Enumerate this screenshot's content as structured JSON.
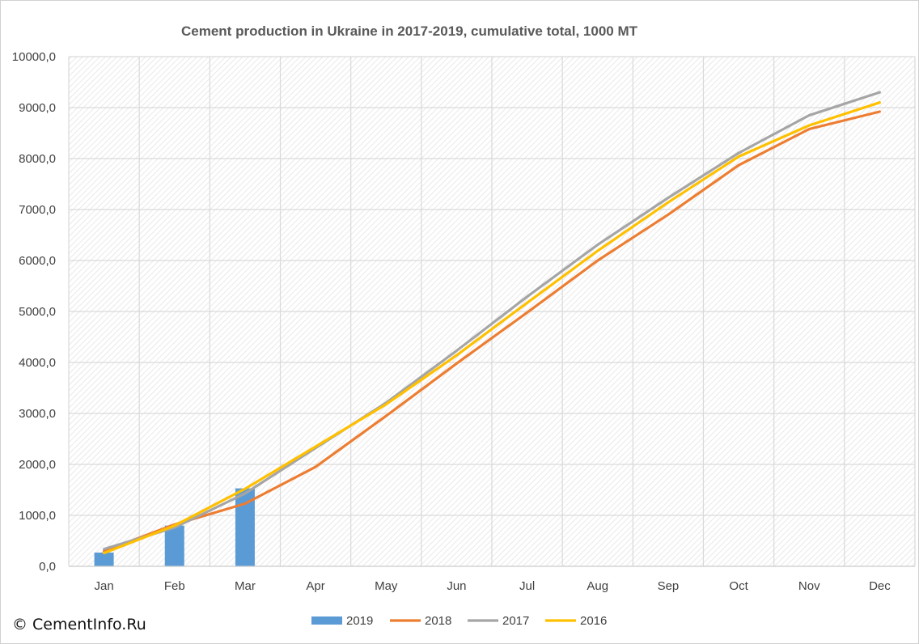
{
  "chart_data": {
    "type": "bar",
    "title": "Cement production  in Ukraine in 2017-2019, cumulative total, 1000 MT",
    "xlabel": "",
    "ylabel": "",
    "categories": [
      "Jan",
      "Feb",
      "Mar",
      "Apr",
      "May",
      "Jun",
      "Jul",
      "Aug",
      "Sep",
      "Oct",
      "Nov",
      "Dec"
    ],
    "ylim": [
      0,
      10000
    ],
    "yticks": [
      0,
      1000,
      2000,
      3000,
      4000,
      5000,
      6000,
      7000,
      8000,
      9000,
      10000
    ],
    "ytick_labels": [
      "0,0",
      "1000,0",
      "2000,0",
      "3000,0",
      "4000,0",
      "5000,0",
      "6000,0",
      "7000,0",
      "8000,0",
      "9000,0",
      "10000,0"
    ],
    "grid": true,
    "legend_position": "bottom",
    "series": [
      {
        "name": "2019",
        "type": "bar",
        "color": "#5b9bd5",
        "values": [
          270,
          800,
          1530,
          null,
          null,
          null,
          null,
          null,
          null,
          null,
          null,
          null
        ]
      },
      {
        "name": "2018",
        "type": "line",
        "color": "#ed7d31",
        "values": [
          300,
          820,
          1230,
          1950,
          2950,
          3980,
          4980,
          6000,
          6900,
          7870,
          8580,
          8920
        ]
      },
      {
        "name": "2017",
        "type": "line",
        "color": "#a5a5a5",
        "values": [
          340,
          760,
          1430,
          2320,
          3210,
          4230,
          5290,
          6310,
          7230,
          8110,
          8850,
          9300
        ]
      },
      {
        "name": "2016",
        "type": "line",
        "color": "#ffc000",
        "values": [
          260,
          800,
          1520,
          2350,
          3180,
          4140,
          5170,
          6190,
          7140,
          8040,
          8650,
          9100
        ]
      }
    ]
  },
  "watermark": "© CementInfo.Ru"
}
